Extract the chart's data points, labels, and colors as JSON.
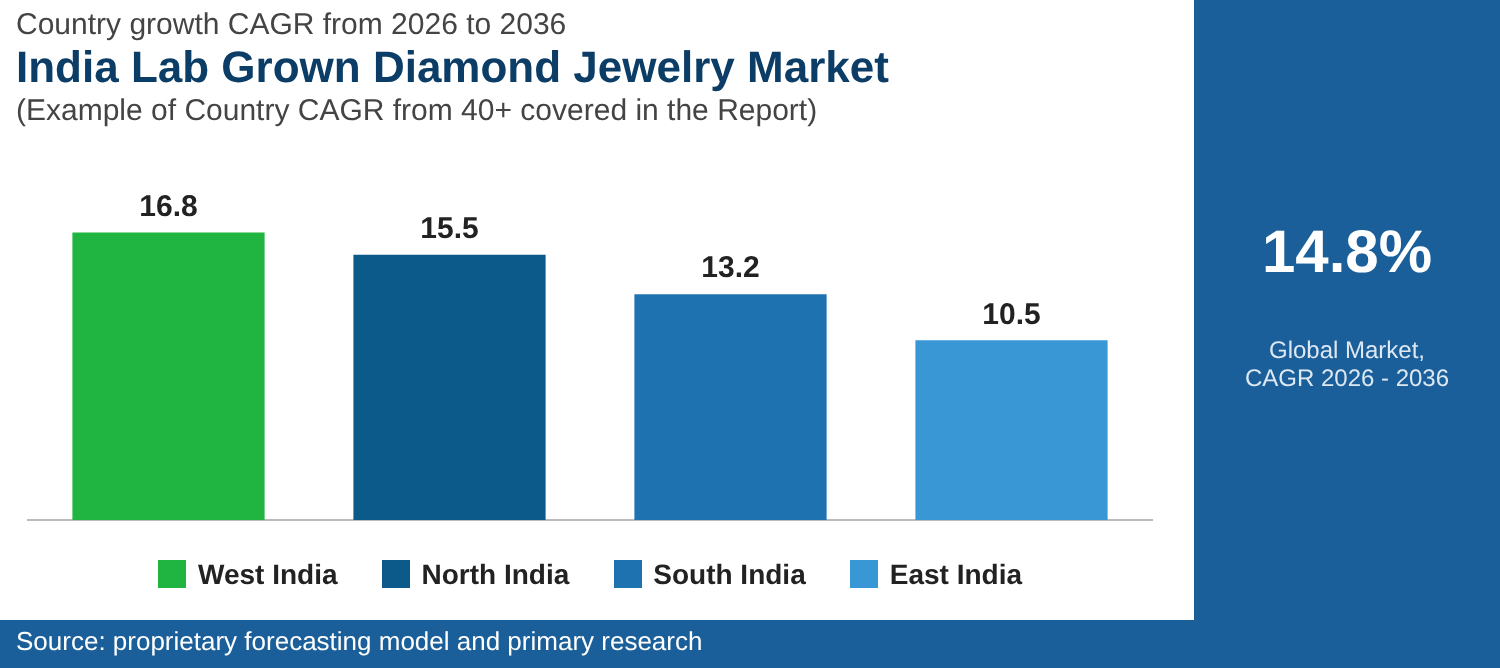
{
  "chart_data": {
    "type": "bar",
    "title": "India Lab Grown Diamond Jewelry Market",
    "subtitle": "(Example of Country CAGR from 40+ covered in the Report)",
    "annotations": [
      "Country growth CAGR from 2026 to 2036",
      "14.8%",
      "Global Market,\nCAGR 2026 - 2036",
      "Source: proprietary forecasting model and primary research"
    ],
    "categories": [
      "West India",
      "North India",
      "South India",
      "East India"
    ],
    "values": [
      16.8,
      15.5,
      13.2,
      10.5
    ],
    "colors": [
      "#1fb540",
      "#0b5a8a",
      "#1e72b0",
      "#3a97d6"
    ],
    "data_labels": true
  }
}
